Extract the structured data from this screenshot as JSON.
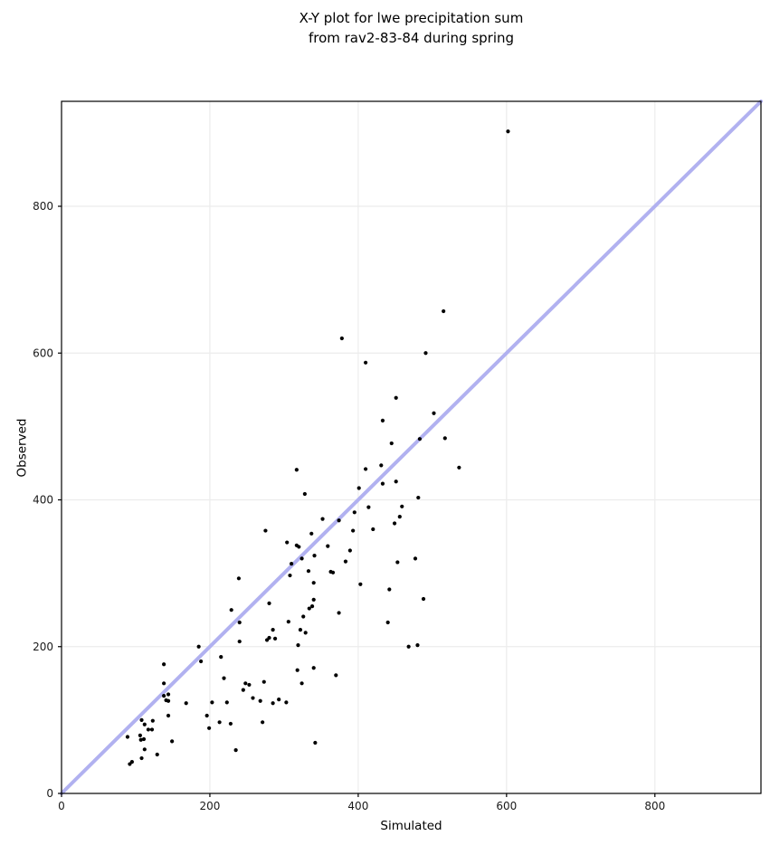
{
  "title": {
    "line1": "X-Y plot for lwe precipitation sum",
    "line2": "from rav2-83-84 during spring"
  },
  "chart_data": {
    "type": "scatter",
    "title": "X-Y plot for lwe precipitation sum from rav2-83-84 during spring",
    "xlabel": "Simulated",
    "ylabel": "Observed",
    "xlim": [
      0,
      943
    ],
    "ylim": [
      0,
      943
    ],
    "x_ticks": [
      0,
      200,
      400,
      600,
      800
    ],
    "y_ticks": [
      0,
      200,
      400,
      600,
      800
    ],
    "grid": true,
    "legend": "none",
    "identity_line": {
      "from": [
        0,
        0
      ],
      "to": [
        943,
        943
      ]
    },
    "points": [
      [
        89,
        77
      ],
      [
        92,
        40
      ],
      [
        95,
        43
      ],
      [
        106,
        79
      ],
      [
        107,
        73
      ],
      [
        108,
        100
      ],
      [
        108,
        48
      ],
      [
        111,
        74
      ],
      [
        112,
        94
      ],
      [
        112,
        60
      ],
      [
        117,
        87
      ],
      [
        122,
        87
      ],
      [
        123,
        99
      ],
      [
        129,
        53
      ],
      [
        138,
        176
      ],
      [
        138,
        150
      ],
      [
        138,
        133
      ],
      [
        141,
        127
      ],
      [
        144,
        135
      ],
      [
        144,
        126
      ],
      [
        144,
        106
      ],
      [
        149,
        71
      ],
      [
        168,
        123
      ],
      [
        185,
        200
      ],
      [
        188,
        180
      ],
      [
        196,
        106
      ],
      [
        199,
        89
      ],
      [
        203,
        124
      ],
      [
        213,
        97
      ],
      [
        215,
        186
      ],
      [
        219,
        157
      ],
      [
        223,
        124
      ],
      [
        228,
        95
      ],
      [
        229,
        250
      ],
      [
        235,
        59
      ],
      [
        239,
        293
      ],
      [
        240,
        233
      ],
      [
        240,
        207
      ],
      [
        245,
        141
      ],
      [
        248,
        150
      ],
      [
        253,
        148
      ],
      [
        258,
        130
      ],
      [
        268,
        126
      ],
      [
        271,
        97
      ],
      [
        273,
        152
      ],
      [
        275,
        358
      ],
      [
        277,
        209
      ],
      [
        280,
        259
      ],
      [
        280,
        212
      ],
      [
        285,
        223
      ],
      [
        285,
        123
      ],
      [
        288,
        211
      ],
      [
        293,
        128
      ],
      [
        303,
        124
      ],
      [
        304,
        342
      ],
      [
        306,
        234
      ],
      [
        308,
        297
      ],
      [
        310,
        313
      ],
      [
        317,
        441
      ],
      [
        317,
        338
      ],
      [
        318,
        168
      ],
      [
        319,
        202
      ],
      [
        320,
        336
      ],
      [
        322,
        223
      ],
      [
        324,
        320
      ],
      [
        324,
        150
      ],
      [
        326,
        241
      ],
      [
        328,
        408
      ],
      [
        329,
        219
      ],
      [
        333,
        303
      ],
      [
        334,
        252
      ],
      [
        337,
        354
      ],
      [
        338,
        255
      ],
      [
        340,
        287
      ],
      [
        340,
        264
      ],
      [
        340,
        171
      ],
      [
        341,
        324
      ],
      [
        342,
        69
      ],
      [
        352,
        374
      ],
      [
        359,
        337
      ],
      [
        363,
        302
      ],
      [
        366,
        301
      ],
      [
        370,
        161
      ],
      [
        374,
        372
      ],
      [
        374,
        246
      ],
      [
        378,
        620
      ],
      [
        383,
        316
      ],
      [
        389,
        331
      ],
      [
        393,
        358
      ],
      [
        395,
        383
      ],
      [
        401,
        416
      ],
      [
        403,
        285
      ],
      [
        410,
        587
      ],
      [
        410,
        442
      ],
      [
        414,
        390
      ],
      [
        420,
        360
      ],
      [
        431,
        447
      ],
      [
        433,
        508
      ],
      [
        433,
        422
      ],
      [
        440,
        233
      ],
      [
        442,
        278
      ],
      [
        445,
        477
      ],
      [
        449,
        368
      ],
      [
        451,
        539
      ],
      [
        451,
        425
      ],
      [
        453,
        315
      ],
      [
        456,
        377
      ],
      [
        459,
        391
      ],
      [
        468,
        200
      ],
      [
        477,
        320
      ],
      [
        480,
        202
      ],
      [
        481,
        403
      ],
      [
        483,
        483
      ],
      [
        488,
        265
      ],
      [
        491,
        600
      ],
      [
        502,
        518
      ],
      [
        515,
        657
      ],
      [
        517,
        484
      ],
      [
        536,
        444
      ],
      [
        602,
        902
      ]
    ]
  },
  "colors": {
    "marker": "#000000",
    "identity_line": "#b1b1f0",
    "grid": "#ececec",
    "spine": "#000000",
    "tick_label": "#1a1a1a"
  }
}
